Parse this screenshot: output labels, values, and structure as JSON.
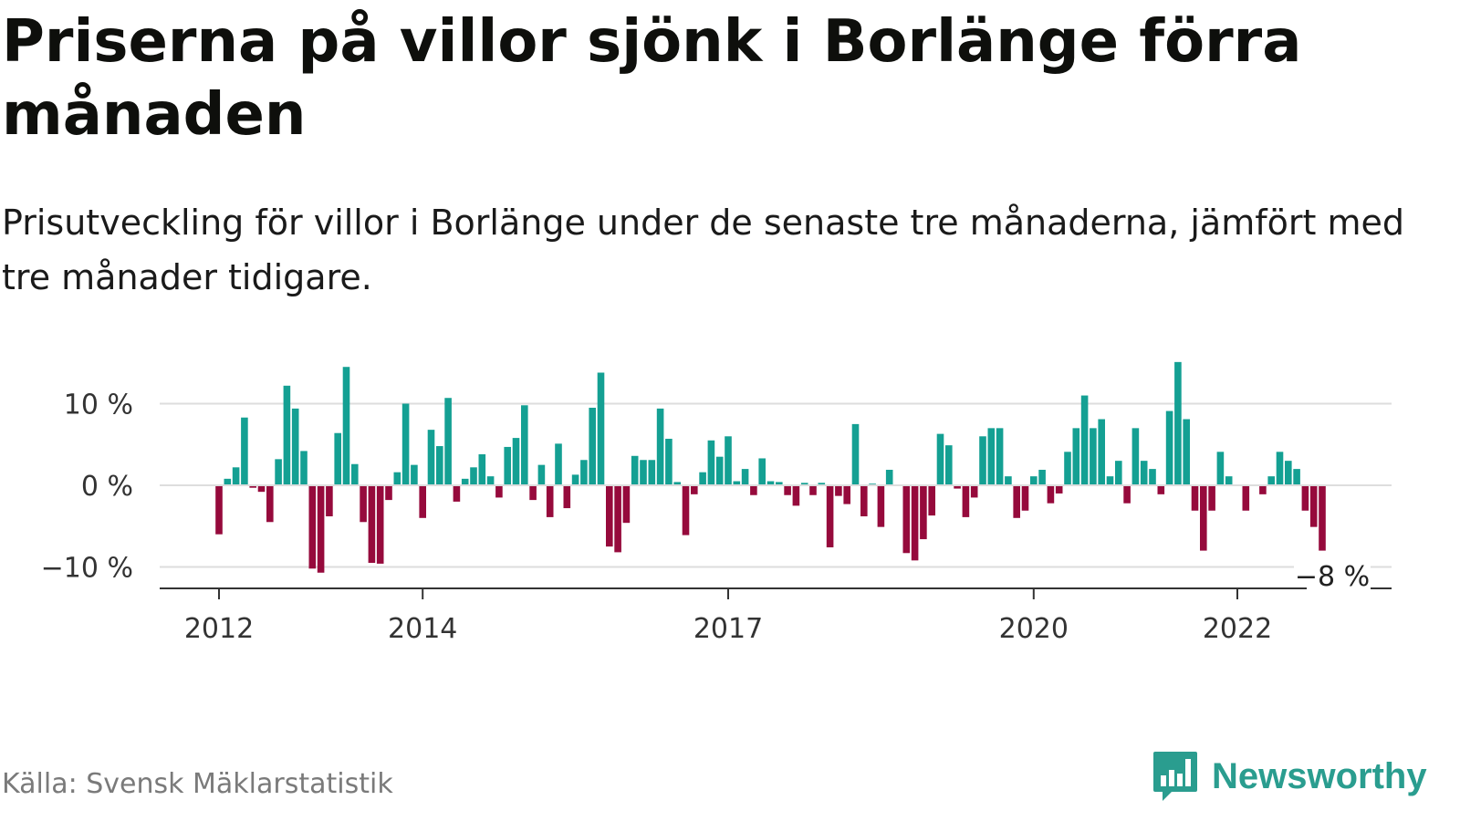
{
  "title": "Priserna på villor sjönk i Borlänge förra månaden",
  "subtitle": "Prisutveckling för villor i Borlänge under de senaste tre månaderna, jämfört med tre månader tidigare.",
  "source": "Källa: Svensk Mäklarstatistik",
  "brand": "Newsworthy",
  "colors": {
    "positive": "#14a093",
    "negative": "#960a3c",
    "grid": "#dddddd",
    "axis": "#333333",
    "brand": "#2a9d8f"
  },
  "chart_data": {
    "type": "bar",
    "title": "Priserna på villor sjönk i Borlänge förra månaden",
    "subtitle": "Prisutveckling för villor i Borlänge under de senaste tre månaderna, jämfört med tre månader tidigare.",
    "xlabel": "",
    "ylabel": "",
    "ylim": [
      -12,
      16
    ],
    "y_ticks": [
      {
        "value": 10,
        "label": "10 %"
      },
      {
        "value": 0,
        "label": "0 %"
      },
      {
        "value": -10,
        "label": "−10 %"
      }
    ],
    "x_ticks": [
      {
        "index": 0,
        "label": "2012"
      },
      {
        "index": 24,
        "label": "2014"
      },
      {
        "index": 60,
        "label": "2017"
      },
      {
        "index": 96,
        "label": "2020"
      },
      {
        "index": 120,
        "label": "2022"
      }
    ],
    "grid": true,
    "legend": "none",
    "last_value_label": "−8 %",
    "values": [
      -6,
      0.8,
      2.2,
      8.3,
      -0.3,
      -0.8,
      -4.5,
      3.2,
      12.2,
      9.4,
      4.2,
      -10.2,
      -10.7,
      -3.8,
      6.4,
      14.5,
      2.6,
      -4.5,
      -9.5,
      -9.6,
      -1.8,
      1.6,
      10,
      2.5,
      -4,
      6.8,
      4.8,
      10.7,
      -2,
      0.8,
      2.2,
      3.8,
      1.1,
      -1.5,
      4.7,
      5.8,
      9.8,
      -1.8,
      2.5,
      -3.9,
      5.1,
      -2.8,
      1.3,
      3.1,
      9.5,
      13.8,
      -7.5,
      -8.2,
      -4.6,
      3.6,
      3.1,
      3.1,
      9.4,
      5.7,
      0.4,
      -6.1,
      -1.1,
      1.6,
      5.5,
      3.5,
      6,
      0.5,
      2,
      -1.2,
      3.3,
      0.5,
      0.4,
      -1.2,
      -2.5,
      0.3,
      -1.2,
      0.3,
      -7.6,
      -1.3,
      -2.3,
      7.5,
      -3.8,
      0.2,
      -5.1,
      1.9,
      0,
      -8.3,
      -9.2,
      -6.6,
      -3.7,
      6.3,
      4.9,
      -0.4,
      -3.9,
      -1.5,
      6,
      7,
      7,
      1.1,
      -4,
      -3.1,
      1.1,
      1.9,
      -2.2,
      -1,
      4.1,
      7,
      11,
      7,
      8.1,
      1.1,
      3,
      -2.2,
      7,
      3,
      2,
      -1.1,
      9.1,
      15.1,
      8.1,
      -3.1,
      -8,
      -3.1,
      4.1,
      1.1,
      0,
      -3.1,
      0,
      -1.1,
      1.1,
      4.1,
      3,
      2,
      -3.1,
      -5.1,
      -8
    ]
  }
}
